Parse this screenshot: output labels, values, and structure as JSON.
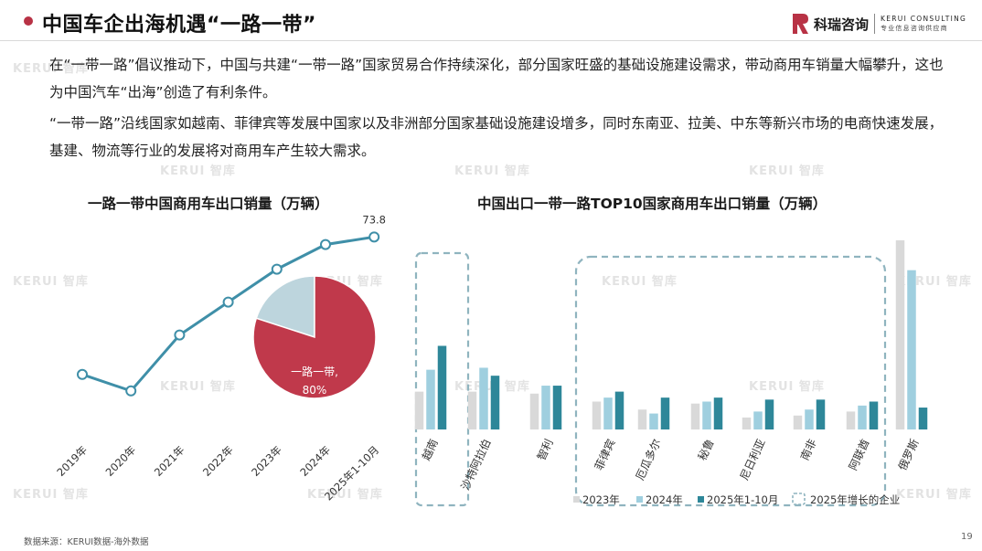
{
  "header": {
    "title": "中国车企出海机遇“一路一带”",
    "logo_cn": "科瑞咨询",
    "logo_en_line1": "KERUI CONSULTING",
    "logo_en_line2": "专业信息咨询供应商",
    "brand_color": "#b83245"
  },
  "body": {
    "paragraph1": "在“一带一路”倡议推动下，中国与共建“一带一路”国家贸易合作持续深化，部分国家旺盛的基础设施建设需求，带动商用车销量大幅攀升，这也为中国汽车“出海”创造了有利条件。",
    "paragraph2": "“一带一路”沿线国家如越南、菲律宾等发展中国家以及非洲部分国家基础设施建设增多，同时东南亚、拉美、中东等新兴市场的电商快速发展，基建、物流等行业的发展将对商用车产生较大需求。"
  },
  "watermark": "KERUI 智库",
  "footer": {
    "source": "数据来源：KERUI数据-海外数据",
    "page_number": "19"
  },
  "chart_data": [
    {
      "type": "line",
      "title": "一路一带中国商用车出口销量（万辆）",
      "categories": [
        "2019年",
        "2020年",
        "2021年",
        "2022年",
        "2023年",
        "2024年",
        "2025年1-10月"
      ],
      "values": [
        32,
        27,
        44,
        54,
        64,
        71.5,
        73.8
      ],
      "data_labels": {
        "6": "73.8"
      },
      "line_color": "#3f8fa8",
      "ylim": [
        0,
        80
      ],
      "inset_pie": {
        "type": "pie",
        "slices": [
          {
            "label": "一路一带,",
            "value_label": "80%",
            "value": 80,
            "color": "#c0394b"
          },
          {
            "label": "",
            "value": 20,
            "color": "#bdd5dd"
          }
        ]
      }
    },
    {
      "type": "bar",
      "title": "中国出口一带一路TOP10国家商用车出口销量（万辆）",
      "categories": [
        "越南",
        "沙特阿拉伯",
        "智利",
        "菲律宾",
        "厄瓜多尔",
        "秘鲁",
        "尼日利亚",
        "南非",
        "阿联酋",
        "俄罗斯"
      ],
      "series": [
        {
          "name": "2023年",
          "color": "#d9d9d9",
          "values": [
            1.9,
            1.9,
            1.8,
            1.4,
            1.0,
            1.3,
            0.6,
            0.7,
            0.9,
            9.5
          ]
        },
        {
          "name": "2024年",
          "color": "#9fcfdf",
          "values": [
            3.0,
            3.1,
            2.2,
            1.6,
            0.8,
            1.4,
            0.9,
            1.0,
            1.2,
            8.0
          ]
        },
        {
          "name": "2025年1-10月",
          "color": "#2e8799",
          "values": [
            4.2,
            2.7,
            2.2,
            1.9,
            1.6,
            1.6,
            1.5,
            1.5,
            1.4,
            1.1
          ]
        }
      ],
      "highlight_legend": "2025年增长的企业",
      "highlight_color": "#8fb4bf",
      "ylim": [
        0,
        9.5
      ]
    }
  ]
}
